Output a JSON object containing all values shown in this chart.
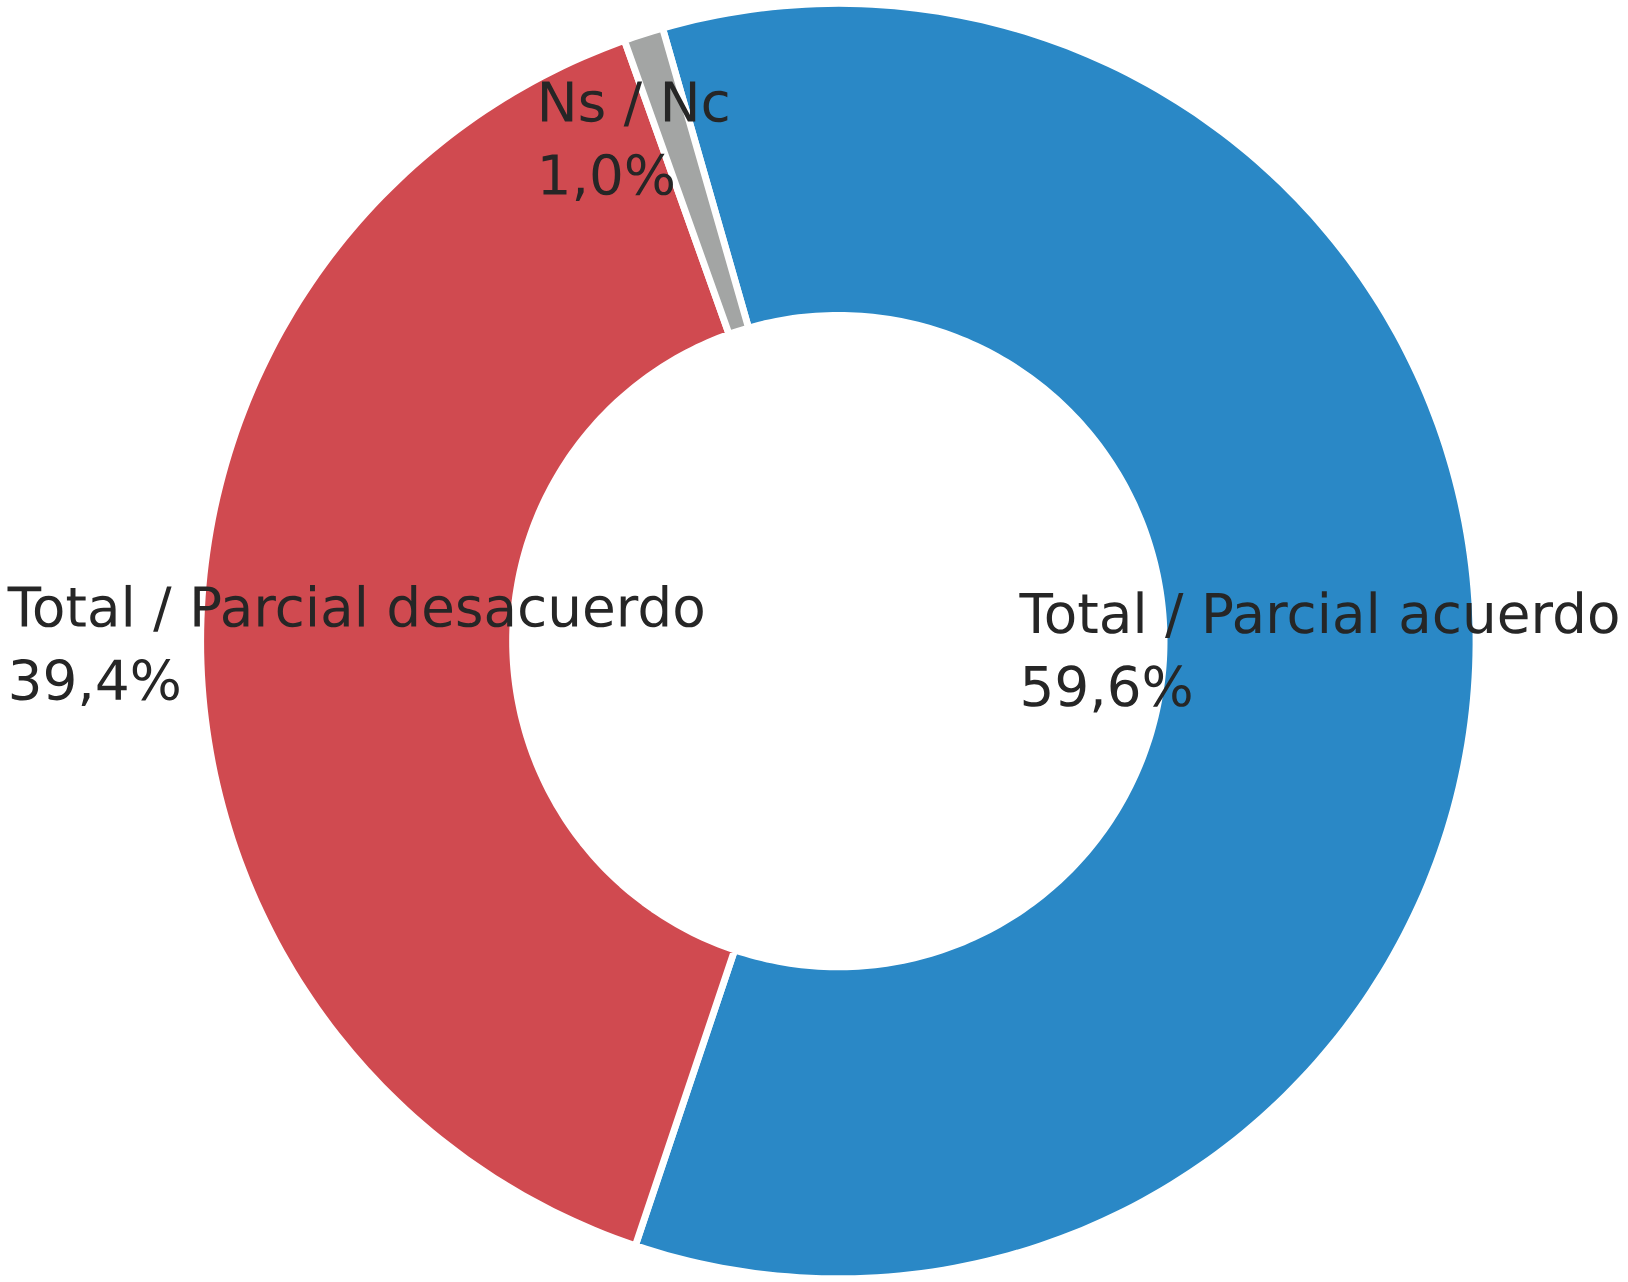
{
  "chart_data": {
    "type": "donut",
    "categories": [
      "Total / Parcial acuerdo",
      "Total / Parcial desacuerdo",
      "Ns / Nc"
    ],
    "values": [
      59.6,
      39.4,
      1.0
    ],
    "colors": [
      "#2a88c6",
      "#d04a50",
      "#a3a5a4"
    ],
    "value_labels": [
      "59,6%",
      "39,4%",
      "1,0%"
    ]
  }
}
